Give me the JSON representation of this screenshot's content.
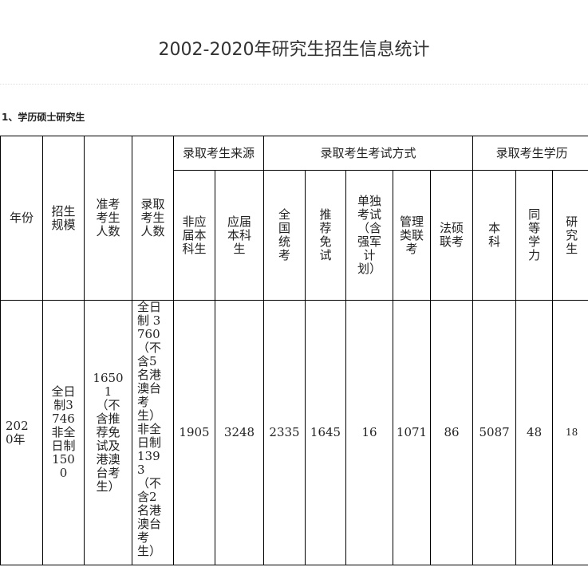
{
  "page_title": "2002-2020年研究生招生信息统计",
  "section_title": "1、学历硕士研究生",
  "table": {
    "headers": {
      "year": "年份",
      "scale": "招生规模",
      "applicants": "准考考生人数",
      "admitted": "录取考生人数",
      "group_source": "录取考生来源",
      "group_exam": "录取考生考试方式",
      "group_edu": "录取考生学历",
      "source": [
        "非应届本科生",
        "应届本科生"
      ],
      "exam": [
        "全国统考",
        "推荐免试",
        "单独考试（含强军计划）",
        "管理类联考",
        "法硕联考"
      ],
      "edu": [
        "本科",
        "同等学力",
        "研究生"
      ]
    },
    "rows": [
      {
        "year": "2020年",
        "scale": "全日制3746非全日制1500",
        "applicants": "16501（不含推荐免试及港澳台考生）",
        "admitted": "全日制 3760（不含5名港澳台考生）非全日制1393（不含2名港澳台考生）",
        "source": [
          "1905",
          "3248"
        ],
        "exam": [
          "2335",
          "1645",
          "16",
          "1071",
          "86"
        ],
        "edu": [
          "5087",
          "48",
          "18"
        ]
      }
    ]
  }
}
